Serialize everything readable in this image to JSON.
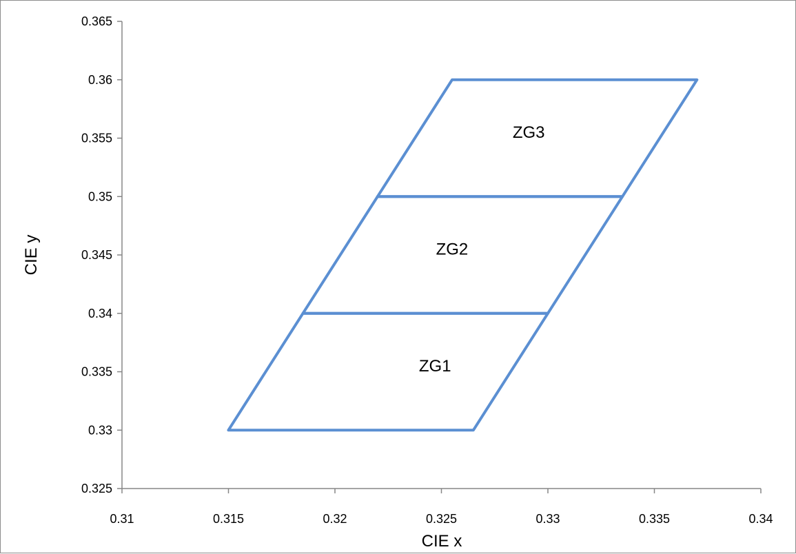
{
  "chart_data": {
    "type": "line",
    "title": "",
    "xlabel": "CIE x",
    "ylabel": "CIE y",
    "xlim": [
      0.31,
      0.34
    ],
    "ylim": [
      0.325,
      0.365
    ],
    "x_ticks": [
      0.31,
      0.315,
      0.32,
      0.325,
      0.33,
      0.335,
      0.34
    ],
    "y_ticks": [
      0.325,
      0.33,
      0.335,
      0.34,
      0.345,
      0.35,
      0.355,
      0.36,
      0.365
    ],
    "x_tick_labels": [
      "0.31",
      "0.315",
      "0.32",
      "0.325",
      "0.33",
      "0.335",
      "0.34"
    ],
    "y_tick_labels": [
      "0.325",
      "0.33",
      "0.335",
      "0.34",
      "0.345",
      "0.35",
      "0.355",
      "0.36",
      "0.365"
    ],
    "grid": false,
    "legend": "none",
    "series_color": "#5b8fd2",
    "series": [
      {
        "label": "ZG1",
        "label_pos": [
          0.3247,
          0.3355
        ],
        "points": [
          [
            0.315,
            0.33
          ],
          [
            0.3265,
            0.33
          ],
          [
            0.33,
            0.34
          ],
          [
            0.3185,
            0.34
          ],
          [
            0.315,
            0.33
          ]
        ]
      },
      {
        "label": "ZG2",
        "label_pos": [
          0.3255,
          0.3455
        ],
        "points": [
          [
            0.3185,
            0.34
          ],
          [
            0.33,
            0.34
          ],
          [
            0.3335,
            0.35
          ],
          [
            0.322,
            0.35
          ],
          [
            0.3185,
            0.34
          ]
        ]
      },
      {
        "label": "ZG3",
        "label_pos": [
          0.3291,
          0.3555
        ],
        "points": [
          [
            0.322,
            0.35
          ],
          [
            0.3335,
            0.35
          ],
          [
            0.337,
            0.36
          ],
          [
            0.3255,
            0.36
          ],
          [
            0.322,
            0.35
          ]
        ]
      }
    ]
  }
}
